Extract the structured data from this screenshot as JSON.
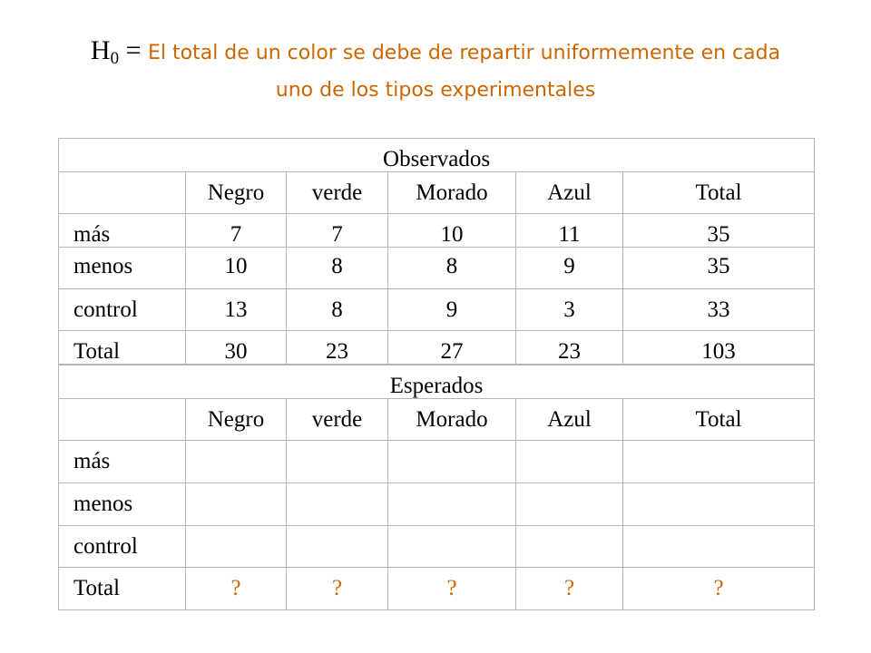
{
  "title": {
    "h_letter": "H",
    "h_sub": "0",
    "equals": " = ",
    "line1": "El total de un color se debe de repartir uniformemente en cada",
    "line2": "uno de los tipos experimentales"
  },
  "observed": {
    "title": "Observados",
    "headers": [
      "",
      "Negro",
      "verde",
      "Morado",
      "Azul",
      "Total"
    ],
    "rows": [
      [
        "más",
        "7",
        "7",
        "10",
        "11",
        "35"
      ],
      [
        "menos",
        "10",
        "8",
        "8",
        "9",
        "35"
      ],
      [
        "control",
        "13",
        "8",
        "9",
        "3",
        "33"
      ],
      [
        "Total",
        "30",
        "23",
        "27",
        "23",
        "103"
      ]
    ]
  },
  "expected": {
    "title": "Esperados",
    "headers": [
      "",
      "Negro",
      "verde",
      "Morado",
      "Azul",
      "Total"
    ],
    "rows": [
      [
        "más",
        "",
        "",
        "",
        "",
        ""
      ],
      [
        "menos",
        "",
        "",
        "",
        "",
        ""
      ],
      [
        "control",
        "",
        "",
        "",
        "",
        ""
      ],
      [
        "Total",
        "?",
        "?",
        "?",
        "?",
        "?"
      ]
    ]
  },
  "colors": {
    "accent": "#cc6600",
    "grid": "#b5b5b5",
    "text": "#000000"
  }
}
